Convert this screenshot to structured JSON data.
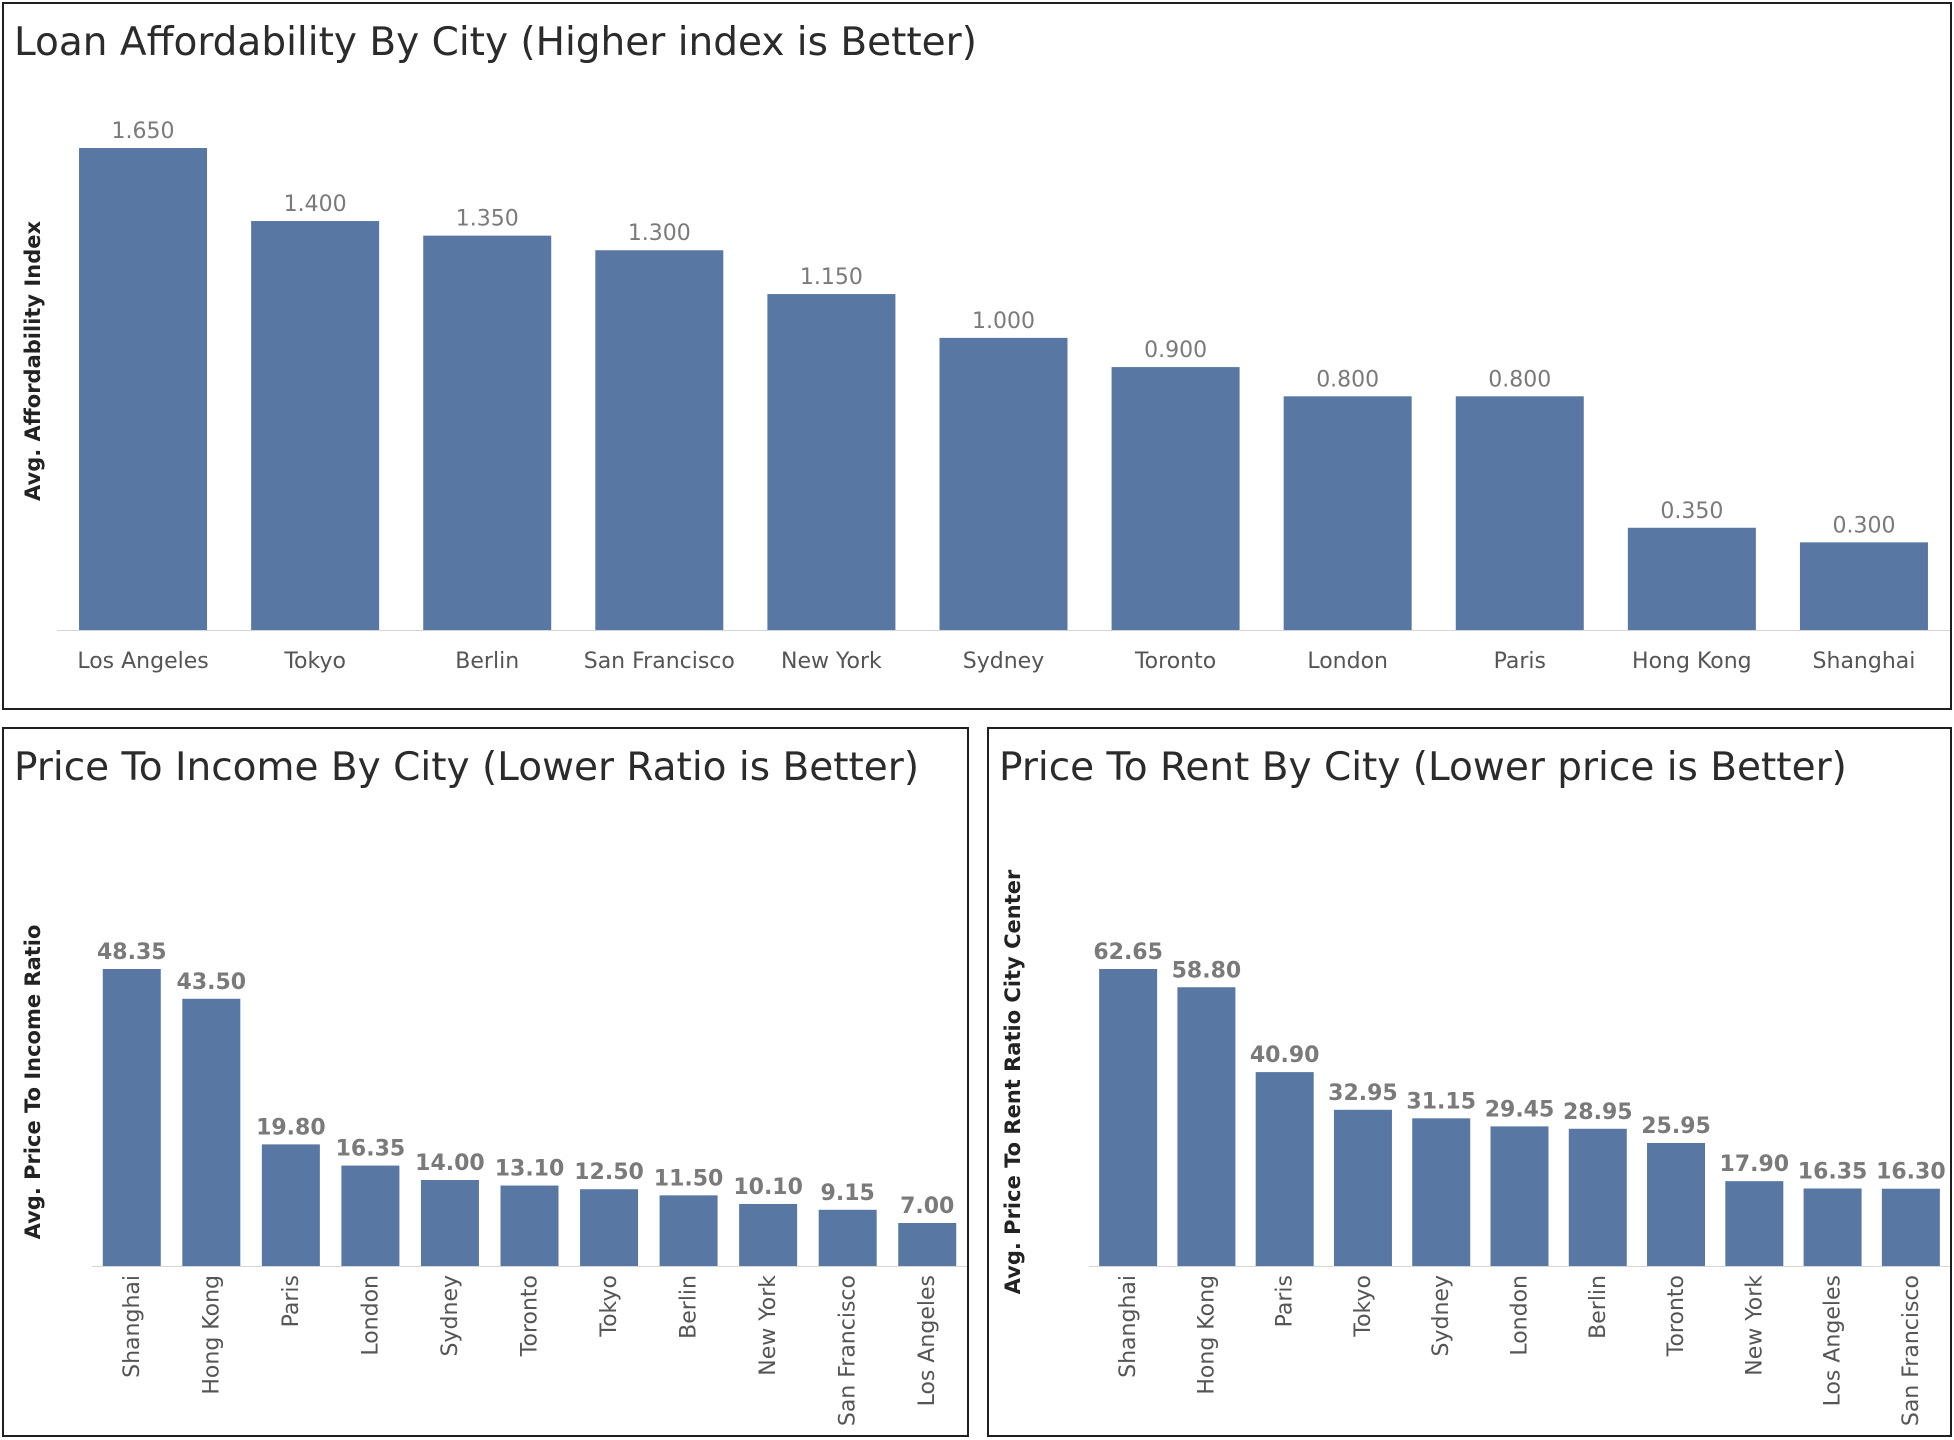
{
  "chart_data": [
    {
      "type": "bar",
      "title": "Loan Affordability By City (Higher index is Better)",
      "xlabel": "",
      "ylabel": "Avg. Affordability Index",
      "categories": [
        "Los Angeles",
        "Tokyo",
        "Berlin",
        "San Francisco",
        "New York",
        "Sydney",
        "Toronto",
        "London",
        "Paris",
        "Hong Kong",
        "Shanghai"
      ],
      "values": [
        1.65,
        1.4,
        1.35,
        1.3,
        1.15,
        1.0,
        0.9,
        0.8,
        0.8,
        0.35,
        0.3
      ],
      "value_labels": [
        "1.650",
        "1.400",
        "1.350",
        "1.300",
        "1.150",
        "1.000",
        "0.900",
        "0.800",
        "0.800",
        "0.350",
        "0.300"
      ],
      "ylim": [
        0,
        1.65
      ],
      "bar_color": "#5877a3",
      "grid": false,
      "legend": "none"
    },
    {
      "type": "bar",
      "title": "Price To Income By City  (Lower Ratio is Better)",
      "xlabel": "",
      "ylabel": "Avg. Price To Income Ratio",
      "categories": [
        "Shanghai",
        "Hong Kong",
        "Paris",
        "London",
        "Sydney",
        "Toronto",
        "Tokyo",
        "Berlin",
        "New York",
        "San Francisco",
        "Los Angeles"
      ],
      "values": [
        48.35,
        43.5,
        19.8,
        16.35,
        14.0,
        13.1,
        12.5,
        11.5,
        10.1,
        9.15,
        7.0
      ],
      "value_labels": [
        "48.35",
        "43.50",
        "19.80",
        "16.35",
        "14.00",
        "13.10",
        "12.50",
        "11.50",
        "10.10",
        "9.15",
        "7.00"
      ],
      "ylim": [
        0,
        48.35
      ],
      "bar_color": "#5877a3",
      "grid": false,
      "legend": "none"
    },
    {
      "type": "bar",
      "title": "Price To Rent By City (Lower price is Better)",
      "xlabel": "",
      "ylabel": "Avg. Price To Rent Ratio City Center",
      "categories": [
        "Shanghai",
        "Hong Kong",
        "Paris",
        "Tokyo",
        "Sydney",
        "London",
        "Berlin",
        "Toronto",
        "New York",
        "Los Angeles",
        "San Francisco"
      ],
      "values": [
        62.65,
        58.8,
        40.9,
        32.95,
        31.15,
        29.45,
        28.95,
        25.95,
        17.9,
        16.35,
        16.3
      ],
      "value_labels": [
        "62.65",
        "58.80",
        "40.90",
        "32.95",
        "31.15",
        "29.45",
        "28.95",
        "25.95",
        "17.90",
        "16.35",
        "16.30"
      ],
      "ylim": [
        0,
        62.65
      ],
      "bar_color": "#5877a3",
      "grid": false,
      "legend": "none"
    }
  ]
}
